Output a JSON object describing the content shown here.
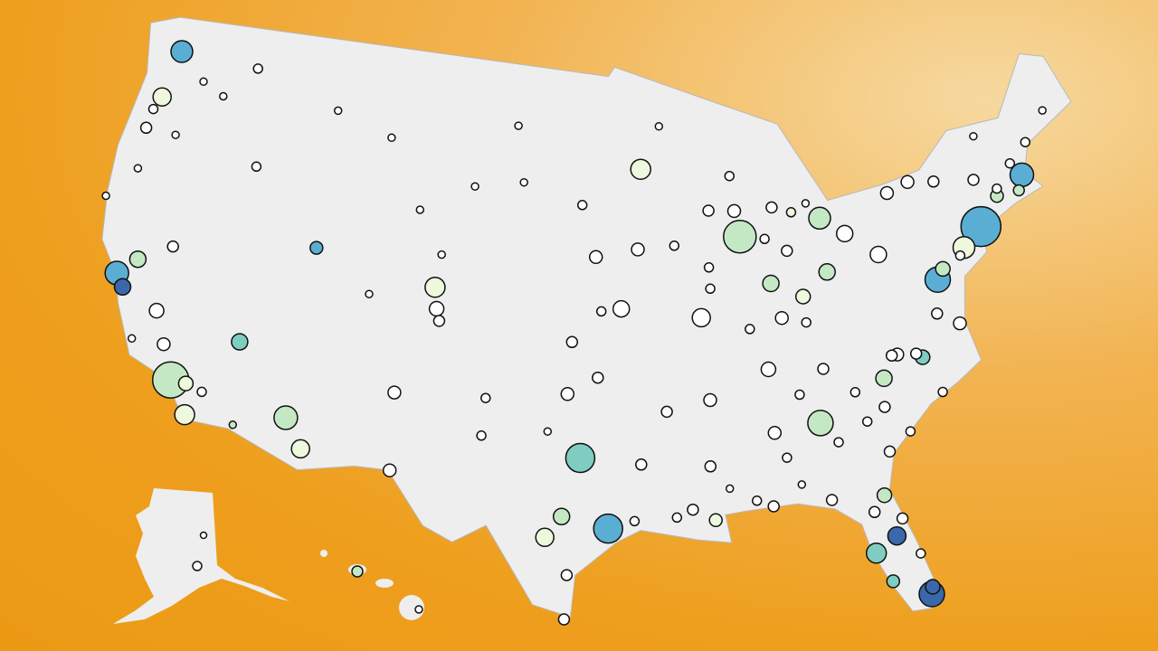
{
  "map": {
    "projection": "albers-usa",
    "land_color": "#eeeeee",
    "border_color": "#b8b8b8",
    "background_colors": [
      "#ec9a14",
      "#f6d9a0"
    ],
    "tier_colors": [
      "#ffffff",
      "#eef8dc",
      "#c5e8c4",
      "#7fcdc0",
      "#5aaed4",
      "#3a68aa"
    ],
    "outline_lonlat": [
      [
        -124.7,
        48.4
      ],
      [
        -123,
        49
      ],
      [
        -95.2,
        49
      ],
      [
        -94.8,
        49.4
      ],
      [
        -89.6,
        48
      ],
      [
        -84.8,
        46.5
      ],
      [
        -82.4,
        43
      ],
      [
        -79,
        43.3
      ],
      [
        -76.8,
        43.6
      ],
      [
        -74.7,
        45
      ],
      [
        -71.5,
        45
      ],
      [
        -69.2,
        47.4
      ],
      [
        -67.8,
        47
      ],
      [
        -67,
        44.8
      ],
      [
        -70.2,
        43.6
      ],
      [
        -70.8,
        42.5
      ],
      [
        -70,
        41.7
      ],
      [
        -71.8,
        41.3
      ],
      [
        -74,
        40.5
      ],
      [
        -74,
        39.6
      ],
      [
        -75.5,
        38.8
      ],
      [
        -76,
        37
      ],
      [
        -75.6,
        35.2
      ],
      [
        -77,
        34.5
      ],
      [
        -78.6,
        33.8
      ],
      [
        -80.9,
        32
      ],
      [
        -81.4,
        30.5
      ],
      [
        -80.5,
        28.2
      ],
      [
        -80,
        26.5
      ],
      [
        -80.3,
        25.2
      ],
      [
        -81.2,
        25.2
      ],
      [
        -82,
        26.5
      ],
      [
        -82.7,
        28
      ],
      [
        -83,
        29.2
      ],
      [
        -84.2,
        30
      ],
      [
        -86,
        30.4
      ],
      [
        -88.5,
        30.3
      ],
      [
        -89.6,
        30.2
      ],
      [
        -89.4,
        29
      ],
      [
        -91,
        29.2
      ],
      [
        -93.8,
        29.7
      ],
      [
        -95,
        29.2
      ],
      [
        -97,
        27.8
      ],
      [
        -97.2,
        26
      ],
      [
        -99,
        26.5
      ],
      [
        -101.4,
        29.8
      ],
      [
        -103,
        29
      ],
      [
        -104.5,
        29.6
      ],
      [
        -106.5,
        31.8
      ],
      [
        -108.2,
        31.8
      ],
      [
        -111,
        31.3
      ],
      [
        -114.8,
        32.5
      ],
      [
        -117.1,
        32.5
      ],
      [
        -118.5,
        34
      ],
      [
        -120.6,
        34.6
      ],
      [
        -121.9,
        36.6
      ],
      [
        -122.5,
        37.8
      ],
      [
        -123.7,
        39
      ],
      [
        -124.2,
        41
      ],
      [
        -124.4,
        43
      ],
      [
        -124,
        46.3
      ],
      [
        -124.7,
        48.4
      ]
    ],
    "points": [
      [
        -74,
        40.7,
        22,
        4
      ],
      [
        -118.2,
        34,
        20,
        2
      ],
      [
        -87.7,
        41.9,
        18,
        2
      ],
      [
        -95.4,
        29.8,
        16,
        4
      ],
      [
        -96.8,
        32.8,
        16,
        3
      ],
      [
        -112,
        33.4,
        13,
        2
      ],
      [
        -75.2,
        40,
        12,
        1
      ],
      [
        -122.4,
        37.8,
        13,
        4
      ],
      [
        -121.9,
        37.3,
        9,
        5
      ],
      [
        -71,
        42.4,
        13,
        4
      ],
      [
        -77,
        38.9,
        14,
        4
      ],
      [
        -84.4,
        33.7,
        14,
        2
      ],
      [
        -80.2,
        25.8,
        14,
        5
      ],
      [
        -122.3,
        47.6,
        12,
        4
      ],
      [
        -105,
        39.7,
        11,
        1
      ],
      [
        -83,
        42.3,
        12,
        2
      ],
      [
        -117.1,
        32.7,
        11,
        1
      ],
      [
        -81.4,
        28.5,
        10,
        5
      ],
      [
        -82.5,
        27.9,
        11,
        3
      ],
      [
        -93.3,
        45,
        11,
        1
      ],
      [
        -122.7,
        45.5,
        10,
        1
      ],
      [
        -115.1,
        36.2,
        9,
        3
      ],
      [
        -111.9,
        40.7,
        7,
        4
      ],
      [
        -121.5,
        38.6,
        9,
        2
      ],
      [
        -97.7,
        30.3,
        9,
        2
      ],
      [
        -98.5,
        29.4,
        10,
        1
      ],
      [
        -90.2,
        38.6,
        10,
        0
      ],
      [
        -94.6,
        39.1,
        9,
        0
      ],
      [
        -81.7,
        41.5,
        9,
        0
      ],
      [
        -83,
        40,
        9,
        2
      ],
      [
        -86.2,
        39.8,
        9,
        2
      ],
      [
        -80.8,
        35.2,
        9,
        2
      ],
      [
        -86.8,
        36.2,
        8,
        0
      ],
      [
        -80,
        40.4,
        9,
        0
      ],
      [
        -84.5,
        39.1,
        8,
        1
      ],
      [
        -80.1,
        26.1,
        8,
        5
      ],
      [
        -81.7,
        30.3,
        8,
        2
      ],
      [
        -78.6,
        35.8,
        8,
        3
      ],
      [
        -111,
        32.2,
        10,
        1
      ],
      [
        -106.6,
        35.1,
        7,
        0
      ],
      [
        -117.4,
        47.7,
        5,
        0
      ],
      [
        -116.2,
        43.6,
        5,
        0
      ],
      [
        -112,
        46.6,
        4,
        0
      ],
      [
        -108.5,
        45.8,
        4,
        0
      ],
      [
        -104.8,
        41.1,
        4,
        0
      ],
      [
        -100.8,
        46.8,
        4,
        0
      ],
      [
        -96.8,
        43.5,
        5,
        0
      ],
      [
        -96,
        41.3,
        7,
        0
      ],
      [
        -97.5,
        35.5,
        7,
        0
      ],
      [
        -95.9,
        36.2,
        6,
        0
      ],
      [
        -101.8,
        35.2,
        5,
        0
      ],
      [
        -101.9,
        33.6,
        5,
        0
      ],
      [
        -106.4,
        31.8,
        7,
        0
      ],
      [
        -92.3,
        34.7,
        6,
        0
      ],
      [
        -90.1,
        30,
        7,
        1
      ],
      [
        -91.2,
        30.5,
        6,
        0
      ],
      [
        -88,
        30.7,
        5,
        0
      ],
      [
        -86.8,
        33.5,
        7,
        0
      ],
      [
        -90,
        35.1,
        7,
        0
      ],
      [
        -85.8,
        38.3,
        7,
        0
      ],
      [
        -84.5,
        38,
        5,
        0
      ],
      [
        -83.9,
        35.96,
        6,
        0
      ],
      [
        -85.3,
        35,
        5,
        0
      ],
      [
        -82.4,
        34.8,
        5,
        0
      ],
      [
        -81,
        34,
        6,
        0
      ],
      [
        -79.9,
        32.8,
        5,
        0
      ],
      [
        -76.3,
        36.9,
        7,
        0
      ],
      [
        -77.4,
        37.5,
        6,
        0
      ],
      [
        -76.6,
        39.3,
        8,
        2
      ],
      [
        -75.5,
        39.7,
        5,
        0
      ],
      [
        -73.8,
        42.7,
        6,
        0
      ],
      [
        -76.1,
        43,
        6,
        0
      ],
      [
        -77.6,
        43.2,
        7,
        0
      ],
      [
        -78.9,
        42.9,
        7,
        0
      ],
      [
        -72.7,
        41.8,
        7,
        2
      ],
      [
        -71.4,
        41.8,
        6,
        2
      ],
      [
        -72.6,
        42.1,
        5,
        0
      ],
      [
        -70.3,
        43.7,
        5,
        0
      ],
      [
        -71.5,
        43,
        5,
        0
      ],
      [
        -73.2,
        44.5,
        4,
        0
      ],
      [
        -68.8,
        44.8,
        4,
        0
      ],
      [
        -87.9,
        43,
        7,
        0
      ],
      [
        -89.4,
        43.1,
        6,
        0
      ],
      [
        -88,
        44.5,
        5,
        0
      ],
      [
        -85.7,
        43,
        6,
        0
      ],
      [
        -84.6,
        42.7,
        5,
        1
      ],
      [
        -83.7,
        43,
        4,
        0
      ],
      [
        -85.1,
        41.1,
        6,
        0
      ],
      [
        -86.3,
        41.7,
        5,
        0
      ],
      [
        -87.6,
        37.97,
        5,
        0
      ],
      [
        -89.6,
        39.8,
        5,
        0
      ],
      [
        -89.6,
        40.7,
        5,
        0
      ],
      [
        -91.5,
        41.7,
        5,
        0
      ],
      [
        -93.6,
        41.6,
        7,
        0
      ],
      [
        -92.1,
        46.8,
        4,
        0
      ],
      [
        -100.3,
        44.4,
        4,
        0
      ],
      [
        -103.2,
        44.1,
        4,
        0
      ],
      [
        -106.3,
        42.9,
        4,
        0
      ],
      [
        -108.6,
        39.1,
        4,
        0
      ],
      [
        -104.6,
        38.3,
        6,
        0
      ],
      [
        -104.8,
        38.8,
        8,
        0
      ],
      [
        -119.8,
        39.5,
        6,
        0
      ],
      [
        -119.8,
        36.7,
        8,
        0
      ],
      [
        -119,
        35.4,
        7,
        0
      ],
      [
        -120.7,
        35.3,
        4,
        0
      ],
      [
        -117.4,
        34,
        8,
        1
      ],
      [
        -116.5,
        33.8,
        5,
        0
      ],
      [
        -114.6,
        32.7,
        4,
        2
      ],
      [
        -121.3,
        44.1,
        4,
        0
      ],
      [
        -123,
        44.9,
        5,
        0
      ],
      [
        -123.1,
        44.05,
        6,
        0
      ],
      [
        -122.9,
        42.3,
        4,
        0
      ],
      [
        -124.2,
        40.8,
        4,
        0
      ],
      [
        -120.5,
        46.6,
        4,
        0
      ],
      [
        -119.1,
        46.2,
        4,
        0
      ],
      [
        -97.3,
        37.7,
        6,
        0
      ],
      [
        -95.7,
        39,
        5,
        0
      ],
      [
        -98.5,
        33.9,
        4,
        0
      ],
      [
        -97.4,
        27.8,
        6,
        0
      ],
      [
        -97.5,
        25.9,
        6,
        0
      ],
      [
        -94.1,
        30.1,
        5,
        0
      ],
      [
        -93.7,
        32.5,
        6,
        0
      ],
      [
        -92,
        30.2,
        5,
        0
      ],
      [
        -89.3,
        31.3,
        4,
        0
      ],
      [
        -90.2,
        32.3,
        6,
        0
      ],
      [
        -86.3,
        32.4,
        5,
        0
      ],
      [
        -85.7,
        31.2,
        4,
        0
      ],
      [
        -84.3,
        30.4,
        6,
        0
      ],
      [
        -87.2,
        30.4,
        6,
        0
      ],
      [
        -82.3,
        29.65,
        6,
        0
      ],
      [
        -81.9,
        26.6,
        7,
        3
      ],
      [
        -80.4,
        27.6,
        5,
        0
      ],
      [
        -81,
        29.2,
        6,
        0
      ],
      [
        -83.6,
        32.8,
        5,
        0
      ],
      [
        -81.1,
        32.1,
        6,
        0
      ],
      [
        -82,
        33.5,
        5,
        0
      ],
      [
        -79.9,
        36.1,
        7,
        0
      ],
      [
        -80.2,
        36.1,
        6,
        0
      ],
      [
        -78.9,
        36,
        6,
        0
      ],
      [
        -77.9,
        34.2,
        5,
        0
      ]
    ]
  }
}
